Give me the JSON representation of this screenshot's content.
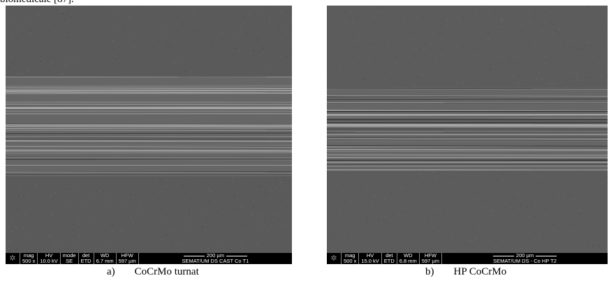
{
  "header": {
    "text": "biomedicale [87]."
  },
  "figures": [
    {
      "info": [
        {
          "label": "mag",
          "value": "500 x"
        },
        {
          "label": "HV",
          "value": "10.0 kV"
        },
        {
          "label": "mode",
          "value": "SE"
        },
        {
          "label": "det",
          "value": "ETD"
        },
        {
          "label": "WD",
          "value": "6.7 mm"
        },
        {
          "label": "HFW",
          "value": "597 µm"
        }
      ],
      "scale": "200 µm",
      "sample": "SEMAT/UM DS CAST Co T1",
      "caption": {
        "label": "a)",
        "text": "CoCrMo turnat"
      }
    },
    {
      "info": [
        {
          "label": "mag",
          "value": "500 x"
        },
        {
          "label": "HV",
          "value": "15.0 kV"
        },
        {
          "label": "det",
          "value": "ETD"
        },
        {
          "label": "WD",
          "value": "6.8 mm"
        },
        {
          "label": "HFW",
          "value": "597 µm"
        }
      ],
      "scale": "200 µm",
      "sample": "SEMAT/UM DS - Co HP T2",
      "caption": {
        "label": "b)",
        "text": "HP CoCrMo"
      }
    }
  ]
}
